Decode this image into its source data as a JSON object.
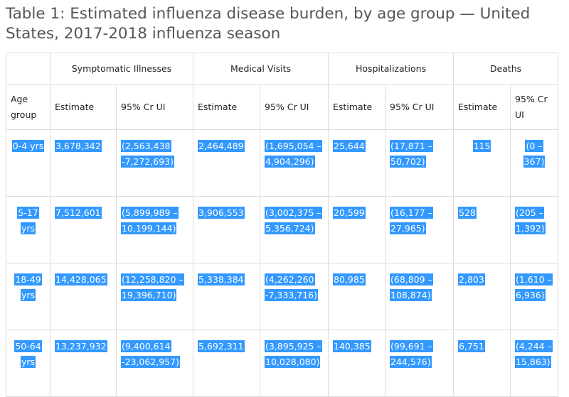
{
  "caption": {
    "line1": "Table 1: Estimated influenza disease burden, by age group — United",
    "line2": "States, 2017-2018 influenza season"
  },
  "groups": [
    "",
    "Symptomatic Illnesses",
    "Medical Visits",
    "Hospitalizations",
    "Deaths"
  ],
  "subheaders": {
    "age": [
      "Age",
      "group"
    ],
    "estimate": "Estimate",
    "ci": "95% Cr UI",
    "ci_deaths": [
      "95% Cr",
      "UI"
    ]
  },
  "rows": [
    {
      "age": "0-4 yrs",
      "sym_est": "3,678,342",
      "sym_ci": "(2,563,438 -7,272,693)",
      "med_est": "2,464,489",
      "med_ci": "(1,695,054 – 4,904,296)",
      "hos_est": "25,644",
      "hos_ci": "(17,871 – 50,702)",
      "dea_est": "115",
      "dea_ci": "(0 – 367)"
    },
    {
      "age": "5-17 yrs",
      "sym_est": "7,512,601",
      "sym_ci": "(5,899,989 – 10,199,144)",
      "med_est": "3,906,553",
      "med_ci": "(3,002,375 – 5,356,724)",
      "hos_est": "20,599",
      "hos_ci": "(16,177 – 27,965)",
      "dea_est": "528",
      "dea_ci": "(205 – 1,392)"
    },
    {
      "age": "18-49 yrs",
      "sym_est": "14,428,065",
      "sym_ci": "(12,258,820 – 19,396,710)",
      "med_est": "5,338,384",
      "med_ci": "(4,262,260 -7,333,716)",
      "hos_est": "80,985",
      "hos_ci": "(68,809 – 108,874)",
      "dea_est": "2,803",
      "dea_ci": "(1,610 – 6,936)"
    },
    {
      "age": "50-64 yrs",
      "sym_est": "13,237,932",
      "sym_ci": "(9,400,614 -23,062,957)",
      "med_est": "5,692,311",
      "med_ci": "(3,895,925 – 10,028,080)",
      "hos_est": "140,385",
      "hos_ci": "(99,691 – 244,576)",
      "dea_est": "6,751",
      "dea_ci": "(4,244 – 15,863)"
    }
  ],
  "colors": {
    "selection": "#3399ff",
    "border": "#dddddd",
    "caption": "#555555"
  }
}
